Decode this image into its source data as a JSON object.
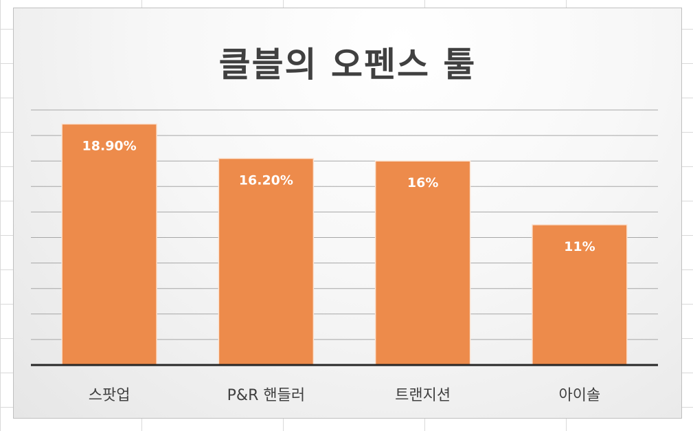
{
  "chart_data": {
    "type": "bar",
    "title": "클블의 오펜스 툴",
    "categories": [
      "스팟업",
      "P&R 핸들러",
      "트랜지션",
      "아이솔"
    ],
    "values": [
      18.9,
      16.2,
      16,
      11
    ],
    "data_labels": [
      "18.90%",
      "16.20%",
      "16%",
      "11%"
    ],
    "ylim": [
      0,
      20
    ],
    "grid": true,
    "legend": "none",
    "colors": {
      "bar": "#ED8B4B",
      "bar_edge": "#FBE3D2",
      "gridline": "#a6a6a6",
      "axis": "#262626",
      "category_text": "#404040",
      "data_label_text": "#ffffff"
    }
  }
}
